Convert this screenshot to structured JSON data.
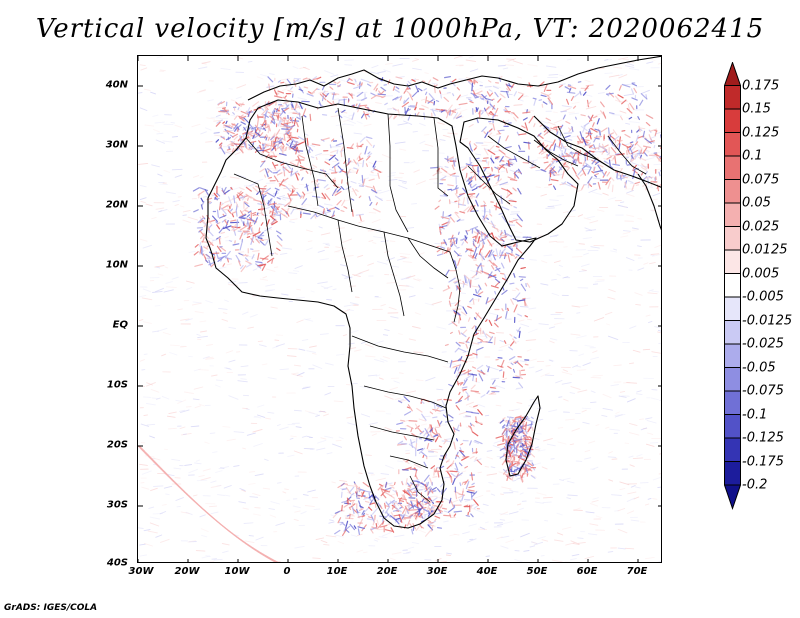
{
  "title": "Vertical velocity [m/s] at 1000hPa, VT: 2020062415",
  "footer": "GrADS: IGES/COLA",
  "map": {
    "region": "Africa and Middle East",
    "lon_range": [
      -30,
      75
    ],
    "lat_range": [
      -40,
      45
    ],
    "lat_labels": [
      "40N",
      "30N",
      "20N",
      "10N",
      "EQ",
      "10S",
      "20S",
      "30S",
      "40S"
    ],
    "lon_labels": [
      "30W",
      "20W",
      "10W",
      "0",
      "10E",
      "20E",
      "30E",
      "40E",
      "50E",
      "60E",
      "70E"
    ]
  },
  "colorbar": {
    "labels": [
      "0.175",
      "0.15",
      "0.125",
      "0.1",
      "0.075",
      "0.05",
      "0.025",
      "0.0125",
      "0.005",
      "-0.005",
      "-0.0125",
      "-0.025",
      "-0.05",
      "-0.075",
      "-0.1",
      "-0.125",
      "-0.175",
      "-0.2"
    ],
    "colors": [
      "#a01c1c",
      "#c02a2a",
      "#d83c3c",
      "#e25656",
      "#e87272",
      "#ee9090",
      "#f4b0b0",
      "#f8cccc",
      "#fce6e6",
      "#ffffff",
      "#e6e6fa",
      "#cacaf4",
      "#acacec",
      "#8e8ee2",
      "#7070d6",
      "#5252c8",
      "#3434b4",
      "#1c1c9c",
      "#10108a"
    ]
  }
}
